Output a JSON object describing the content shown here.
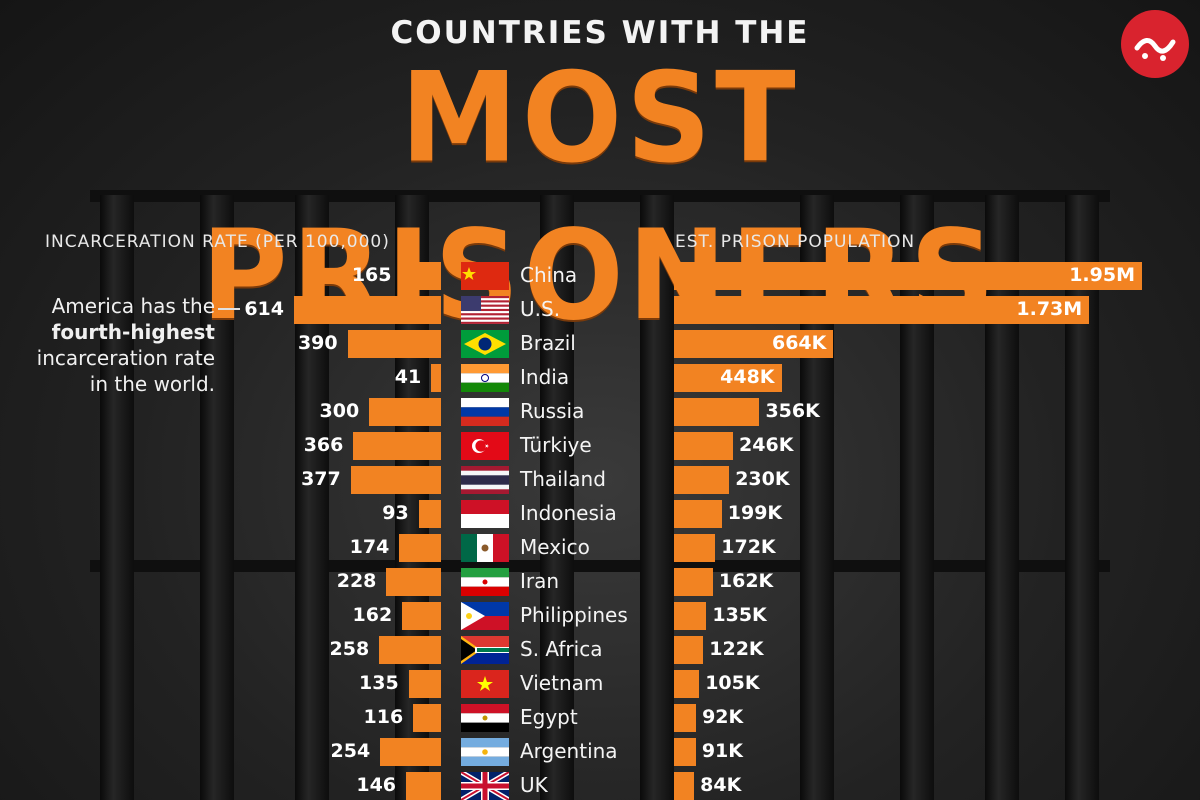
{
  "header": {
    "kicker": "COUNTRIES WITH THE",
    "title": "MOST PRISONERS"
  },
  "annotation": {
    "line1": "America has the",
    "bold": "fourth-highest",
    "line3": "incarceration rate",
    "line4": "in the world."
  },
  "colors": {
    "bar": "#f28322",
    "text": "#ffffff",
    "background": "#1c1c1c"
  },
  "chart_data": [
    {
      "type": "bar",
      "title": "INCARCERATION RATE (PER 100,000)",
      "orientation": "horizontal",
      "direction": "right-to-left",
      "categories": [
        "China",
        "U.S.",
        "Brazil",
        "India",
        "Russia",
        "Türkiye",
        "Thailand",
        "Indonesia",
        "Mexico",
        "Iran",
        "Philippines",
        "S. Africa",
        "Vietnam",
        "Egypt",
        "Argentina",
        "UK"
      ],
      "values": [
        165,
        614,
        390,
        41,
        300,
        366,
        377,
        93,
        174,
        228,
        162,
        258,
        135,
        116,
        254,
        146
      ],
      "labels": [
        "165",
        "614",
        "390",
        "41",
        "300",
        "366",
        "377",
        "93",
        "174",
        "228",
        "162",
        "258",
        "135",
        "116",
        "254",
        "146"
      ]
    },
    {
      "type": "bar",
      "title": "EST. PRISON POPULATION",
      "orientation": "horizontal",
      "direction": "left-to-right",
      "categories": [
        "China",
        "U.S.",
        "Brazil",
        "India",
        "Russia",
        "Türkiye",
        "Thailand",
        "Indonesia",
        "Mexico",
        "Iran",
        "Philippines",
        "S. Africa",
        "Vietnam",
        "Egypt",
        "Argentina",
        "UK"
      ],
      "values": [
        1950000,
        1730000,
        664000,
        448000,
        356000,
        246000,
        230000,
        199000,
        172000,
        162000,
        135000,
        122000,
        105000,
        92000,
        91000,
        84000
      ],
      "labels": [
        "1.95M",
        "1.73M",
        "664K",
        "448K",
        "356K",
        "246K",
        "230K",
        "199K",
        "172K",
        "162K",
        "135K",
        "122K",
        "105K",
        "92K",
        "91K",
        "84K"
      ]
    }
  ],
  "flags": [
    "china-flag",
    "us-flag",
    "brazil-flag",
    "india-flag",
    "russia-flag",
    "turkiye-flag",
    "thailand-flag",
    "indonesia-flag",
    "mexico-flag",
    "iran-flag",
    "philippines-flag",
    "south-africa-flag",
    "vietnam-flag",
    "egypt-flag",
    "argentina-flag",
    "uk-flag"
  ]
}
